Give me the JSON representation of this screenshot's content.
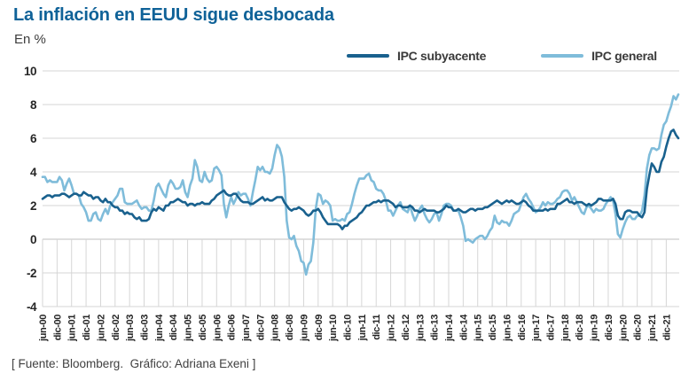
{
  "header": {
    "title": "La inflación en EEUU sigue desbocada",
    "subtitle": "En %"
  },
  "legend": {
    "items": [
      {
        "label": "IPC subyacente",
        "color": "#19618e"
      },
      {
        "label": "IPC general",
        "color": "#7fbcda"
      }
    ]
  },
  "footer": {
    "source": "[ Fuente: Bloomberg.  Gráfico: Adriana Exeni ]"
  },
  "chart_data": {
    "type": "line",
    "title": "La inflación en EEUU sigue desbocada",
    "xlabel": "",
    "ylabel": "En %",
    "ylim": [
      -4,
      10
    ],
    "yticks": [
      10,
      8,
      6,
      4,
      2,
      0,
      -2,
      -4
    ],
    "grid": "horizontal full-width; vertical ticks only between 0 and -4",
    "legend_position": "top-right",
    "x_unit": "monthly",
    "x_range": [
      "jun-00",
      "may-22"
    ],
    "points_per_tick": 6,
    "x_tick_labels": [
      "jun-00",
      "dic-00",
      "jun-01",
      "dic-01",
      "jun-02",
      "dic-02",
      "jun-03",
      "dic-03",
      "jun-04",
      "dic-04",
      "jun-05",
      "dic-05",
      "jun-06",
      "dic-06",
      "jun-07",
      "dic-07",
      "jun-08",
      "dic-08",
      "jun-09",
      "dic-09",
      "jun-10",
      "dic-10",
      "jun-11",
      "dic-11",
      "jun-12",
      "dic-12",
      "jun-13",
      "dic-13",
      "jun-14",
      "dic-14",
      "jun-15",
      "dic-15",
      "jun-16",
      "dic-16",
      "jun-17",
      "dic-17",
      "jun-18",
      "dic-18",
      "jun-19",
      "dic-19",
      "jun-20",
      "dic-20",
      "jun-21",
      "dic-21"
    ],
    "series": [
      {
        "name": "IPC subyacente",
        "color": "#19618e",
        "values": [
          2.4,
          2.5,
          2.6,
          2.6,
          2.5,
          2.6,
          2.6,
          2.6,
          2.7,
          2.7,
          2.6,
          2.5,
          2.6,
          2.7,
          2.7,
          2.6,
          2.6,
          2.8,
          2.7,
          2.6,
          2.6,
          2.4,
          2.5,
          2.5,
          2.3,
          2.2,
          2.4,
          2.2,
          2.2,
          2.0,
          1.9,
          1.9,
          1.7,
          1.7,
          1.5,
          1.6,
          1.5,
          1.5,
          1.3,
          1.2,
          1.3,
          1.1,
          1.1,
          1.1,
          1.2,
          1.6,
          1.8,
          1.7,
          1.9,
          1.8,
          1.7,
          2.0,
          2.0,
          2.2,
          2.2,
          2.3,
          2.4,
          2.3,
          2.2,
          2.2,
          2.0,
          2.1,
          2.1,
          2.0,
          2.1,
          2.1,
          2.2,
          2.1,
          2.1,
          2.1,
          2.3,
          2.4,
          2.6,
          2.7,
          2.8,
          2.9,
          2.7,
          2.6,
          2.6,
          2.7,
          2.7,
          2.5,
          2.3,
          2.2,
          2.2,
          2.2,
          2.1,
          2.1,
          2.2,
          2.3,
          2.4,
          2.5,
          2.3,
          2.4,
          2.3,
          2.3,
          2.4,
          2.5,
          2.5,
          2.5,
          2.2,
          2.0,
          1.8,
          1.7,
          1.8,
          1.8,
          1.9,
          1.8,
          1.7,
          1.5,
          1.4,
          1.5,
          1.7,
          1.7,
          1.8,
          1.6,
          1.3,
          1.1,
          0.9,
          0.9,
          0.9,
          0.9,
          0.9,
          0.8,
          0.6,
          0.8,
          0.8,
          1.0,
          1.1,
          1.2,
          1.3,
          1.5,
          1.6,
          1.8,
          2.0,
          2.0,
          2.1,
          2.2,
          2.2,
          2.3,
          2.2,
          2.3,
          2.3,
          2.3,
          2.2,
          2.1,
          1.9,
          2.0,
          2.0,
          1.9,
          1.9,
          1.9,
          2.0,
          1.9,
          1.7,
          1.7,
          1.6,
          1.7,
          1.8,
          1.7,
          1.7,
          1.7,
          1.7,
          1.6,
          1.6,
          1.7,
          1.8,
          2.0,
          1.9,
          1.9,
          1.7,
          1.7,
          1.8,
          1.7,
          1.6,
          1.6,
          1.7,
          1.8,
          1.8,
          1.7,
          1.8,
          1.8,
          1.8,
          1.9,
          1.9,
          2.0,
          2.1,
          2.2,
          2.3,
          2.2,
          2.1,
          2.2,
          2.3,
          2.2,
          2.3,
          2.2,
          2.1,
          2.1,
          2.2,
          2.3,
          2.2,
          2.0,
          1.9,
          1.7,
          1.7,
          1.7,
          1.7,
          1.7,
          1.8,
          1.7,
          1.8,
          1.8,
          1.8,
          2.1,
          2.1,
          2.2,
          2.3,
          2.4,
          2.2,
          2.2,
          2.1,
          2.2,
          2.2,
          2.2,
          2.1,
          2.0,
          2.1,
          2.0,
          2.1,
          2.2,
          2.4,
          2.4,
          2.3,
          2.3,
          2.3,
          2.3,
          2.4,
          2.1,
          1.4,
          1.2,
          1.2,
          1.6,
          1.7,
          1.7,
          1.6,
          1.6,
          1.6,
          1.4,
          1.3,
          1.6,
          3.0,
          3.8,
          4.5,
          4.3,
          4.0,
          4.0,
          4.6,
          4.9,
          5.5,
          6.0,
          6.4,
          6.5,
          6.2,
          6.0
        ]
      },
      {
        "name": "IPC general",
        "color": "#7fbcda",
        "values": [
          3.7,
          3.7,
          3.4,
          3.5,
          3.4,
          3.4,
          3.4,
          3.7,
          3.5,
          2.9,
          3.3,
          3.6,
          3.2,
          2.7,
          2.7,
          2.6,
          2.1,
          1.9,
          1.6,
          1.1,
          1.1,
          1.5,
          1.6,
          1.2,
          1.1,
          1.5,
          1.8,
          1.5,
          2.0,
          2.2,
          2.4,
          2.6,
          3.0,
          3.0,
          2.2,
          2.1,
          2.1,
          2.1,
          2.2,
          2.3,
          2.0,
          1.8,
          1.9,
          1.9,
          1.7,
          1.7,
          2.3,
          3.1,
          3.3,
          3.0,
          2.7,
          2.5,
          3.2,
          3.5,
          3.3,
          3.0,
          3.0,
          3.1,
          3.5,
          2.8,
          2.5,
          3.2,
          3.6,
          4.7,
          4.3,
          3.5,
          3.4,
          4.0,
          3.6,
          3.4,
          3.5,
          4.2,
          4.3,
          4.1,
          3.8,
          2.1,
          1.3,
          2.0,
          2.5,
          2.1,
          2.4,
          2.8,
          2.6,
          2.7,
          2.7,
          2.4,
          2.0,
          2.8,
          3.5,
          4.3,
          4.1,
          4.3,
          4.0,
          4.0,
          3.9,
          4.2,
          5.0,
          5.6,
          5.4,
          4.9,
          3.7,
          1.1,
          0.1,
          0.0,
          0.2,
          -0.4,
          -0.7,
          -1.3,
          -1.4,
          -2.1,
          -1.5,
          -1.3,
          -0.2,
          1.8,
          2.7,
          2.6,
          2.1,
          2.3,
          2.2,
          2.0,
          1.1,
          1.2,
          1.1,
          1.1,
          1.2,
          1.1,
          1.5,
          1.6,
          2.1,
          2.7,
          3.2,
          3.6,
          3.6,
          3.6,
          3.8,
          3.9,
          3.5,
          3.4,
          3.0,
          2.9,
          2.9,
          2.7,
          2.3,
          1.7,
          1.7,
          1.4,
          1.7,
          2.0,
          2.2,
          1.8,
          1.7,
          1.6,
          2.0,
          1.5,
          1.1,
          1.4,
          1.8,
          2.0,
          1.5,
          1.2,
          1.0,
          1.2,
          1.5,
          1.6,
          1.1,
          1.5,
          2.0,
          2.1,
          2.1,
          2.0,
          1.7,
          1.7,
          1.7,
          1.3,
          0.8,
          -0.1,
          0.0,
          -0.1,
          -0.2,
          0.0,
          0.1,
          0.2,
          0.2,
          0.0,
          0.2,
          0.5,
          0.7,
          1.4,
          1.0,
          0.9,
          1.1,
          1.0,
          1.0,
          0.8,
          1.1,
          1.5,
          1.6,
          1.7,
          2.1,
          2.5,
          2.7,
          2.4,
          2.2,
          1.9,
          1.6,
          1.7,
          1.9,
          2.2,
          2.0,
          2.2,
          2.1,
          2.1,
          2.2,
          2.4,
          2.5,
          2.8,
          2.9,
          2.9,
          2.7,
          2.3,
          2.5,
          2.2,
          1.9,
          1.6,
          1.5,
          1.9,
          2.0,
          1.8,
          1.6,
          1.8,
          1.7,
          1.7,
          1.8,
          2.1,
          2.3,
          2.5,
          2.3,
          1.5,
          0.3,
          0.1,
          0.6,
          1.0,
          1.3,
          1.4,
          1.2,
          1.2,
          1.4,
          1.4,
          1.7,
          2.6,
          4.2,
          5.0,
          5.4,
          5.4,
          5.3,
          5.4,
          6.2,
          6.8,
          7.0,
          7.5,
          7.9,
          8.5,
          8.3,
          8.6
        ]
      }
    ]
  }
}
